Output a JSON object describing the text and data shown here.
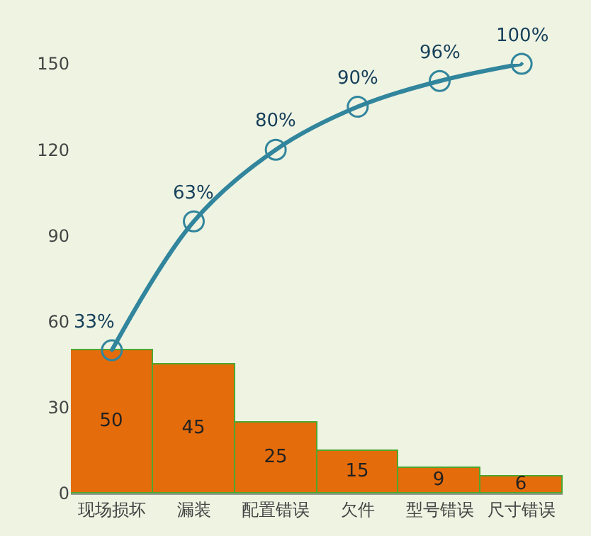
{
  "chart_data": {
    "type": "bar",
    "categories": [
      "现场损坏",
      "漏装",
      "配置错误",
      "欠件",
      "型号错误",
      "尺寸错误"
    ],
    "series": [
      {
        "color": "#e46c0a",
        "values": [
          50,
          45,
          25,
          15,
          9,
          6
        ],
        "data_labels": true
      },
      {
        "type": "line",
        "color": "#31859c",
        "values": [
          50,
          95,
          120,
          135,
          144,
          150
        ],
        "marker": "circle"
      }
    ],
    "annotations": [
      {
        "text": "33%",
        "x": "现场损坏",
        "y": 50
      },
      {
        "text": "63%",
        "x": "漏装",
        "y": 95
      },
      {
        "text": "80%",
        "x": "配置错误",
        "y": 120
      },
      {
        "text": "90%",
        "x": "欠件",
        "y": 135
      },
      {
        "text": "96%",
        "x": "型号错误",
        "y": 144
      },
      {
        "text": "100%",
        "x": "尺寸错误",
        "y": 150
      }
    ],
    "ylim": [
      0,
      150
    ],
    "yticks": [
      0,
      30,
      60,
      90,
      120,
      150
    ],
    "grid": false
  }
}
